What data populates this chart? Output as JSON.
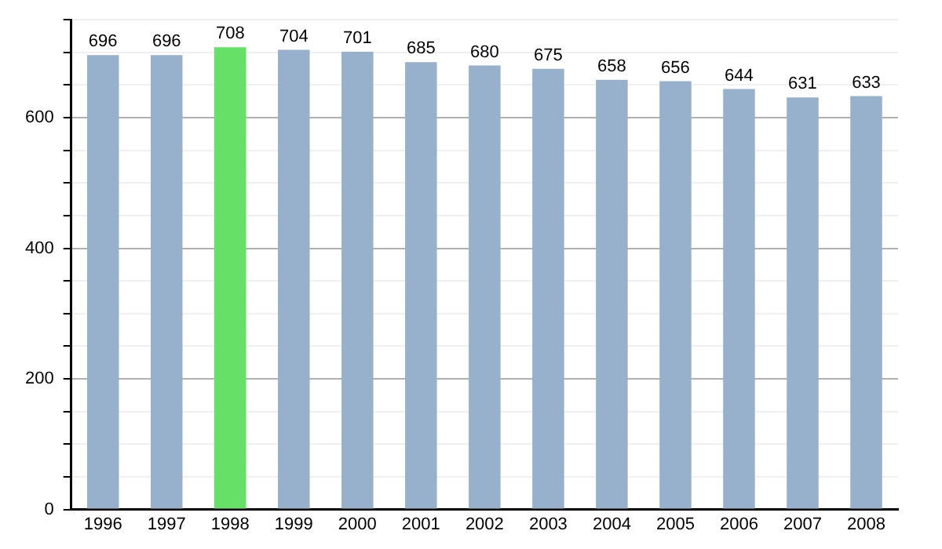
{
  "chart_data": {
    "type": "bar",
    "categories": [
      "1996",
      "1997",
      "1998",
      "1999",
      "2000",
      "2001",
      "2002",
      "2003",
      "2004",
      "2005",
      "2006",
      "2007",
      "2008"
    ],
    "values": [
      696,
      696,
      708,
      704,
      701,
      685,
      680,
      675,
      658,
      656,
      644,
      631,
      633
    ],
    "colors": [
      "#97b0cb",
      "#97b0cb",
      "#66e066",
      "#97b0cb",
      "#97b0cb",
      "#97b0cb",
      "#97b0cb",
      "#97b0cb",
      "#97b0cb",
      "#97b0cb",
      "#97b0cb",
      "#97b0cb",
      "#97b0cb"
    ],
    "ylim": [
      0,
      750
    ],
    "yticks": [
      0,
      {
        "value": 50,
        "label": null
      },
      {
        "value": 100,
        "label": null
      },
      {
        "value": 150,
        "label": null
      },
      200,
      {
        "value": 250,
        "label": null
      },
      {
        "value": 300,
        "label": null
      },
      {
        "value": 350,
        "label": null
      },
      400,
      {
        "value": 450,
        "label": null
      },
      {
        "value": 500,
        "label": null
      },
      {
        "value": 550,
        "label": null
      },
      600,
      {
        "value": 650,
        "label": null
      },
      {
        "value": 700,
        "label": null
      },
      {
        "value": 750,
        "label": null
      }
    ],
    "grid": "y",
    "data_labels": true,
    "legend": false
  }
}
